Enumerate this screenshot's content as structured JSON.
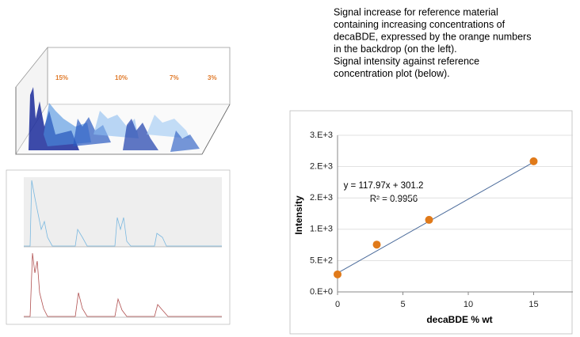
{
  "description": [
    "Signal increase for reference material",
    "containing increasing concentrations of",
    "decaBDE, expressed by the orange numbers",
    "in the backdrop (on the left).",
    "Signal intensity against reference",
    "concentration plot (below)."
  ],
  "backdrop_labels": [
    "15%",
    "10%",
    "7%",
    "3%"
  ],
  "chart_data": {
    "type": "scatter",
    "x_label": "decaBDE % wt",
    "y_label": "Intensity",
    "x": [
      0,
      3,
      7,
      15
    ],
    "values": [
      280,
      755,
      1150,
      2085
    ],
    "color": "#e07a1a",
    "xlim": [
      0,
      18
    ],
    "xticks": [
      0,
      5,
      10,
      15
    ],
    "ylim": [
      0,
      2500
    ],
    "yticks": [
      {
        "value": 0,
        "label": "0.E+0"
      },
      {
        "value": 500,
        "label": "5.E+2"
      },
      {
        "value": 1000,
        "label": "1.E+3"
      },
      {
        "value": 1500,
        "label": "2.E+3"
      },
      {
        "value": 2000,
        "label": "2.E+3"
      },
      {
        "value": 2500,
        "label": "3.E+3"
      }
    ],
    "grid": true,
    "trendline": {
      "slope": 117.97,
      "intercept": 301.2,
      "color": "#4a6a9a",
      "equation": "y = 117.97x + 301.2",
      "r2": "R² = 0.9956"
    }
  }
}
